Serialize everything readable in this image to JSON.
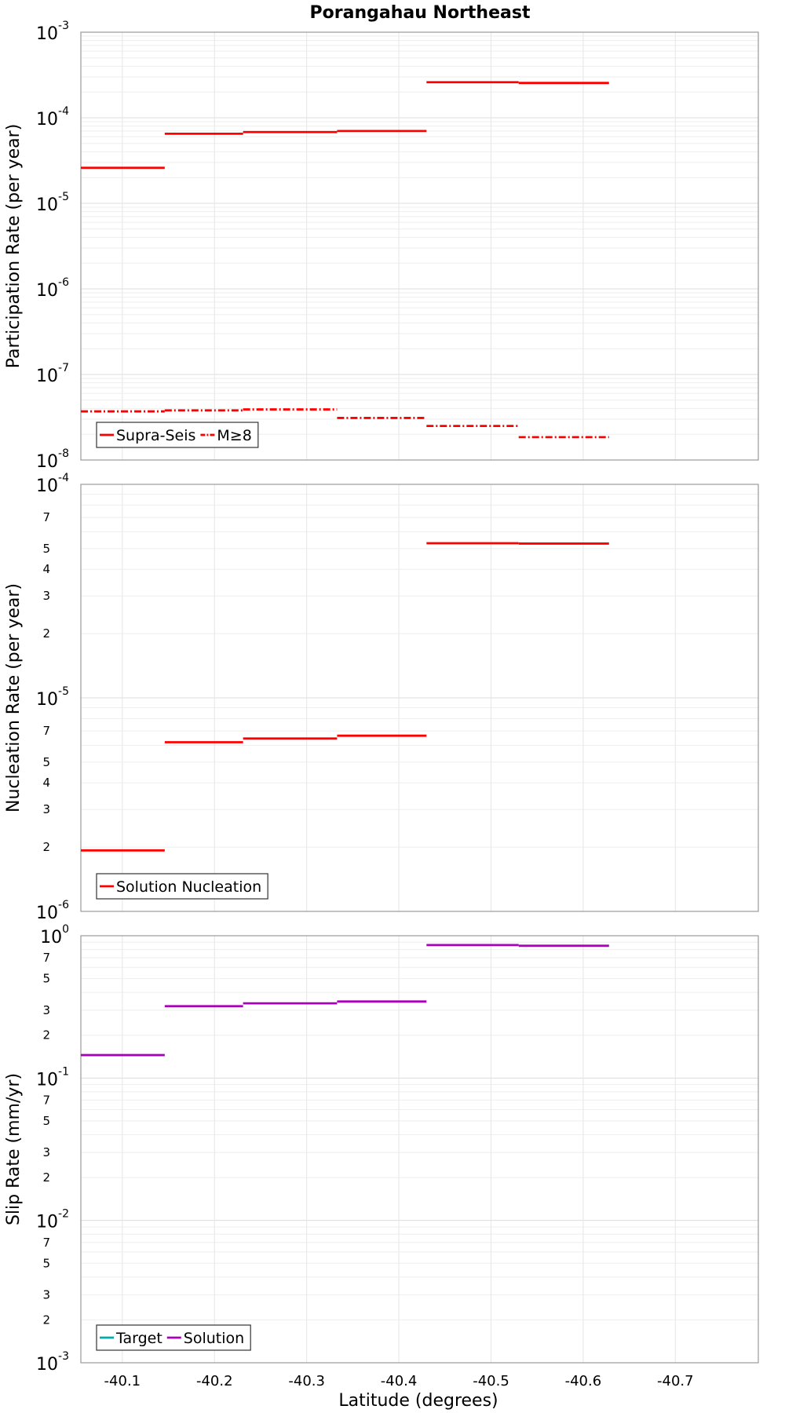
{
  "chart_data": {
    "type": "line",
    "title": "Porangahau Northeast",
    "xlabel": "Latitude (degrees)",
    "xlim": [
      -40.055,
      -40.79
    ],
    "x_ticks": [
      -40.1,
      -40.2,
      -40.3,
      -40.4,
      -40.5,
      -40.6,
      -40.7
    ],
    "x_tick_labels": [
      "-40.1",
      "-40.2",
      "-40.3",
      "-40.4",
      "-40.5",
      "-40.6",
      "-40.7"
    ],
    "panels": [
      {
        "id": "participation",
        "ylabel": "Participation Rate (per year)",
        "yscale": "log",
        "ylim": [
          1e-08,
          0.001
        ],
        "major_ticks": [
          {
            "value": 0.001,
            "base": "10",
            "exp": "-3"
          },
          {
            "value": 0.0001,
            "base": "10",
            "exp": "-4"
          },
          {
            "value": 1e-05,
            "base": "10",
            "exp": "-5"
          },
          {
            "value": 1e-06,
            "base": "10",
            "exp": "-6"
          },
          {
            "value": 1e-07,
            "base": "10",
            "exp": "-7"
          },
          {
            "value": 1e-08,
            "base": "10",
            "exp": "-8"
          }
        ],
        "minor_labels": [],
        "legend": [
          {
            "label": "Supra-Seis",
            "color": "#ff0000",
            "dash": "solid"
          },
          {
            "label": "M≥8",
            "color": "#ff0000",
            "dash": "dashdot"
          }
        ],
        "series": [
          {
            "name": "Supra-Seis",
            "color": "#ff0000",
            "dash": "solid",
            "segments": [
              {
                "x0": -40.055,
                "x1": -40.146,
                "y": 2.6e-05
              },
              {
                "x0": -40.146,
                "x1": -40.231,
                "y": 6.5e-05
              },
              {
                "x0": -40.231,
                "x1": -40.333,
                "y": 6.8e-05
              },
              {
                "x0": -40.333,
                "x1": -40.43,
                "y": 7e-05
              },
              {
                "x0": -40.43,
                "x1": -40.53,
                "y": 0.00026
              },
              {
                "x0": -40.53,
                "x1": -40.628,
                "y": 0.000255
              }
            ]
          },
          {
            "name": "M≥8",
            "color": "#ff0000",
            "dash": "dashdot",
            "segments": [
              {
                "x0": -40.055,
                "x1": -40.146,
                "y": 3.7e-08
              },
              {
                "x0": -40.146,
                "x1": -40.231,
                "y": 3.8e-08
              },
              {
                "x0": -40.231,
                "x1": -40.333,
                "y": 3.9e-08
              },
              {
                "x0": -40.333,
                "x1": -40.43,
                "y": 3.1e-08
              },
              {
                "x0": -40.43,
                "x1": -40.53,
                "y": 2.5e-08
              },
              {
                "x0": -40.53,
                "x1": -40.628,
                "y": 1.85e-08
              }
            ]
          }
        ]
      },
      {
        "id": "nucleation",
        "ylabel": "Nucleation Rate (per year)",
        "yscale": "log",
        "ylim": [
          1e-06,
          0.0001
        ],
        "major_ticks": [
          {
            "value": 0.0001,
            "base": "10",
            "exp": "-4"
          },
          {
            "value": 1e-05,
            "base": "10",
            "exp": "-5"
          },
          {
            "value": 1e-06,
            "base": "10",
            "exp": "-6"
          }
        ],
        "minor_labels": [
          {
            "value": 7e-05,
            "label": "7"
          },
          {
            "value": 5e-05,
            "label": "5"
          },
          {
            "value": 4e-05,
            "label": "4"
          },
          {
            "value": 3e-05,
            "label": "3"
          },
          {
            "value": 2e-05,
            "label": "2"
          },
          {
            "value": 7e-06,
            "label": "7"
          },
          {
            "value": 5e-06,
            "label": "5"
          },
          {
            "value": 4e-06,
            "label": "4"
          },
          {
            "value": 3e-06,
            "label": "3"
          },
          {
            "value": 2e-06,
            "label": "2"
          }
        ],
        "legend": [
          {
            "label": "Solution Nucleation",
            "color": "#ff0000",
            "dash": "solid"
          }
        ],
        "series": [
          {
            "name": "Solution Nucleation",
            "color": "#ff0000",
            "dash": "solid",
            "segments": [
              {
                "x0": -40.055,
                "x1": -40.146,
                "y": 1.93e-06
              },
              {
                "x0": -40.146,
                "x1": -40.231,
                "y": 6.2e-06
              },
              {
                "x0": -40.231,
                "x1": -40.333,
                "y": 6.45e-06
              },
              {
                "x0": -40.333,
                "x1": -40.43,
                "y": 6.65e-06
              },
              {
                "x0": -40.43,
                "x1": -40.53,
                "y": 5.3e-05
              },
              {
                "x0": -40.53,
                "x1": -40.628,
                "y": 5.28e-05
              }
            ]
          }
        ]
      },
      {
        "id": "slip",
        "ylabel": "Slip Rate (mm/yr)",
        "yscale": "log",
        "ylim": [
          0.001,
          1
        ],
        "major_ticks": [
          {
            "value": 1,
            "base": "10",
            "exp": "0"
          },
          {
            "value": 0.1,
            "base": "10",
            "exp": "-1"
          },
          {
            "value": 0.01,
            "base": "10",
            "exp": "-2"
          },
          {
            "value": 0.001,
            "base": "10",
            "exp": "-3"
          }
        ],
        "minor_labels": [
          {
            "value": 0.7,
            "label": "7"
          },
          {
            "value": 0.5,
            "label": "5"
          },
          {
            "value": 0.3,
            "label": "3"
          },
          {
            "value": 0.2,
            "label": "2"
          },
          {
            "value": 0.07,
            "label": "7"
          },
          {
            "value": 0.05,
            "label": "5"
          },
          {
            "value": 0.03,
            "label": "3"
          },
          {
            "value": 0.02,
            "label": "2"
          },
          {
            "value": 0.007,
            "label": "7"
          },
          {
            "value": 0.005,
            "label": "5"
          },
          {
            "value": 0.003,
            "label": "3"
          },
          {
            "value": 0.002,
            "label": "2"
          }
        ],
        "legend": [
          {
            "label": "Target",
            "color": "#00aaaa",
            "dash": "solid"
          },
          {
            "label": "Solution",
            "color": "#aa00bb",
            "dash": "solid"
          }
        ],
        "series": [
          {
            "name": "Solution",
            "color": "#aa00bb",
            "dash": "solid",
            "segments": [
              {
                "x0": -40.055,
                "x1": -40.146,
                "y": 0.145
              },
              {
                "x0": -40.146,
                "x1": -40.231,
                "y": 0.32
              },
              {
                "x0": -40.231,
                "x1": -40.333,
                "y": 0.335
              },
              {
                "x0": -40.333,
                "x1": -40.43,
                "y": 0.345
              },
              {
                "x0": -40.43,
                "x1": -40.53,
                "y": 0.86
              },
              {
                "x0": -40.53,
                "x1": -40.628,
                "y": 0.85
              }
            ]
          }
        ]
      }
    ]
  }
}
